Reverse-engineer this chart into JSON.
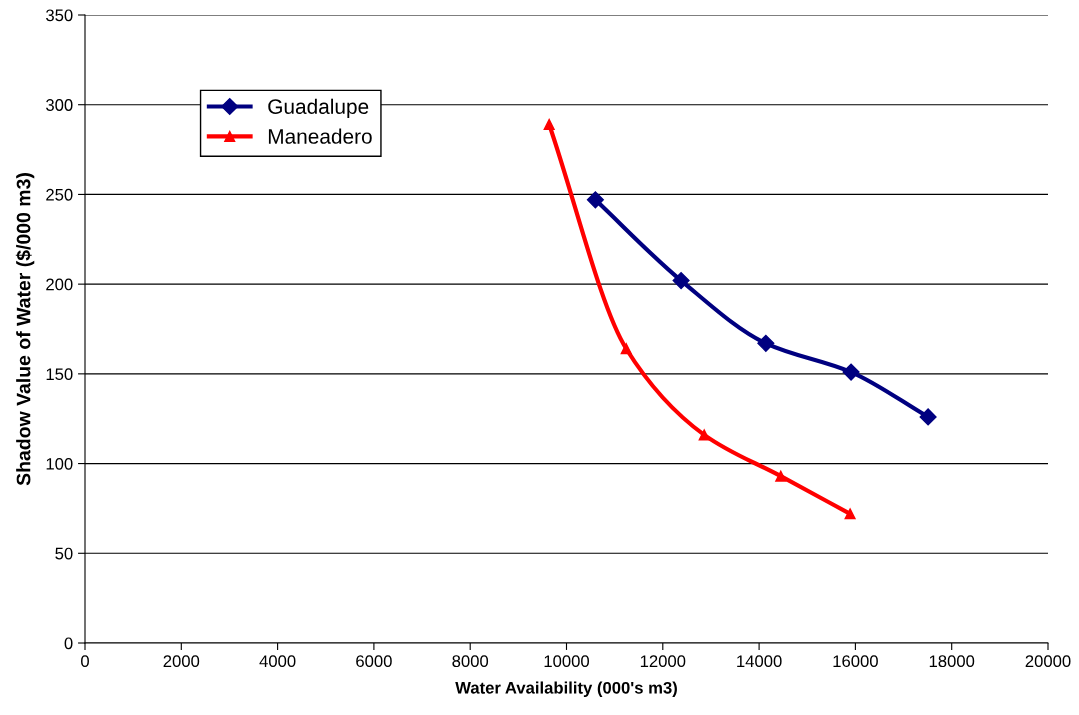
{
  "chart_data": {
    "type": "line",
    "xlabel": "Water Availability (000's m3)",
    "ylabel": "Shadow Value of Water ($/000 m3)",
    "xlim": [
      0,
      20000
    ],
    "xticks": [
      0,
      2000,
      4000,
      6000,
      8000,
      10000,
      12000,
      14000,
      16000,
      18000,
      20000
    ],
    "ylim": [
      0,
      350
    ],
    "yticks": [
      0,
      50,
      100,
      150,
      200,
      250,
      300,
      350
    ],
    "grid": "y",
    "legend": "top left",
    "series": [
      {
        "name": "Guadalupe",
        "color": "#000080",
        "marker": "diamond",
        "x": [
          10600,
          12380,
          14140,
          15910,
          17510
        ],
        "values": [
          247,
          202,
          167,
          151,
          126
        ]
      },
      {
        "name": "Maneadero",
        "color": "#ff0000",
        "marker": "triangle",
        "x": [
          9640,
          11240,
          12860,
          14450,
          15890
        ],
        "values": [
          289,
          164,
          116,
          93,
          72
        ]
      }
    ]
  }
}
